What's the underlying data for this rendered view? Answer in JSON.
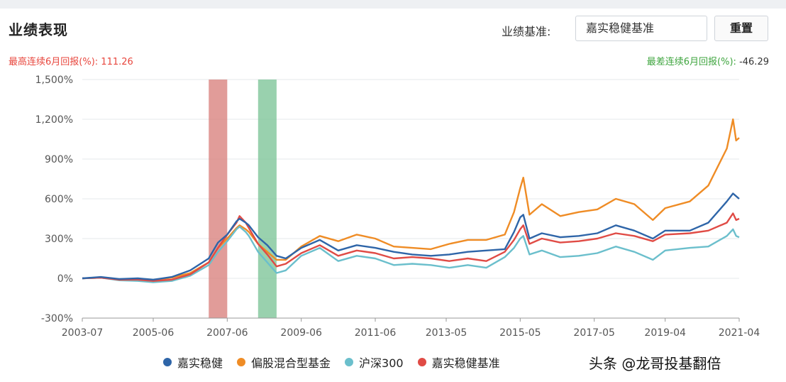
{
  "panel": {
    "title": "业绩表现",
    "benchmark_label": "业绩基准:",
    "benchmark_value": "嘉实稳健基准",
    "reset_label": "重置"
  },
  "stats": {
    "best_label": "最高连续6月回报(%):",
    "best_value": "111.26",
    "worst_label": "最差连续6月回报(%):",
    "worst_value": "-46.29"
  },
  "watermark": "头条 @龙哥投基翻倍",
  "colors": {
    "series1": "#2e65a8",
    "series2": "#ef8c25",
    "series3": "#6bbfcc",
    "series4": "#e04b45",
    "best_band": "#d9837f",
    "worst_band": "#7fc59a",
    "best_text": "#e8473e",
    "worst_text": "#3fa53f"
  },
  "chart_data": {
    "type": "line",
    "x_ticks": [
      "2003-07",
      "2005-06",
      "2007-06",
      "2009-06",
      "2011-06",
      "2013-05",
      "2015-05",
      "2017-05",
      "2019-04",
      "2021-04"
    ],
    "y_ticks": [
      "1,500%",
      "1,200%",
      "900%",
      "600%",
      "300%",
      "0%",
      "-300%"
    ],
    "ylim": [
      -300,
      1500
    ],
    "y_unit": "%",
    "x_range": [
      "2003-07",
      "2021-04"
    ],
    "grid": "horizontal",
    "legend_position": "bottom",
    "shaded_periods": [
      {
        "kind": "best_6m",
        "start": "2006-12",
        "end": "2007-06"
      },
      {
        "kind": "worst_6m",
        "start": "2008-04",
        "end": "2008-10"
      }
    ],
    "series": [
      {
        "name": "嘉实稳健",
        "key": "series1",
        "points": [
          [
            "2003-07",
            0
          ],
          [
            "2004-01",
            10
          ],
          [
            "2004-07",
            -5
          ],
          [
            "2005-01",
            0
          ],
          [
            "2005-06",
            -10
          ],
          [
            "2005-12",
            10
          ],
          [
            "2006-06",
            60
          ],
          [
            "2006-12",
            150
          ],
          [
            "2007-03",
            270
          ],
          [
            "2007-06",
            330
          ],
          [
            "2007-09",
            430
          ],
          [
            "2007-10",
            450
          ],
          [
            "2007-12",
            420
          ],
          [
            "2008-01",
            400
          ],
          [
            "2008-04",
            310
          ],
          [
            "2008-07",
            250
          ],
          [
            "2008-10",
            170
          ],
          [
            "2009-01",
            150
          ],
          [
            "2009-06",
            230
          ],
          [
            "2009-12",
            290
          ],
          [
            "2010-06",
            210
          ],
          [
            "2010-12",
            250
          ],
          [
            "2011-06",
            230
          ],
          [
            "2011-12",
            200
          ],
          [
            "2012-06",
            180
          ],
          [
            "2012-12",
            170
          ],
          [
            "2013-06",
            180
          ],
          [
            "2013-12",
            200
          ],
          [
            "2014-06",
            210
          ],
          [
            "2014-12",
            220
          ],
          [
            "2015-03",
            350
          ],
          [
            "2015-05",
            460
          ],
          [
            "2015-06",
            480
          ],
          [
            "2015-08",
            300
          ],
          [
            "2015-12",
            340
          ],
          [
            "2016-06",
            310
          ],
          [
            "2016-12",
            320
          ],
          [
            "2017-06",
            340
          ],
          [
            "2017-12",
            400
          ],
          [
            "2018-06",
            360
          ],
          [
            "2018-12",
            300
          ],
          [
            "2019-04",
            360
          ],
          [
            "2019-12",
            360
          ],
          [
            "2020-06",
            420
          ],
          [
            "2020-12",
            580
          ],
          [
            "2021-02",
            640
          ],
          [
            "2021-03",
            620
          ],
          [
            "2021-04",
            600
          ]
        ]
      },
      {
        "name": "偏股混合型基金",
        "key": "series2",
        "points": [
          [
            "2003-07",
            0
          ],
          [
            "2004-01",
            5
          ],
          [
            "2004-07",
            -10
          ],
          [
            "2005-01",
            -5
          ],
          [
            "2005-06",
            -15
          ],
          [
            "2005-12",
            5
          ],
          [
            "2006-06",
            40
          ],
          [
            "2006-12",
            120
          ],
          [
            "2007-03",
            230
          ],
          [
            "2007-06",
            300
          ],
          [
            "2007-09",
            380
          ],
          [
            "2007-10",
            400
          ],
          [
            "2007-12",
            370
          ],
          [
            "2008-01",
            350
          ],
          [
            "2008-04",
            260
          ],
          [
            "2008-07",
            200
          ],
          [
            "2008-10",
            140
          ],
          [
            "2009-01",
            140
          ],
          [
            "2009-06",
            240
          ],
          [
            "2009-12",
            320
          ],
          [
            "2010-06",
            280
          ],
          [
            "2010-12",
            330
          ],
          [
            "2011-06",
            300
          ],
          [
            "2011-12",
            240
          ],
          [
            "2012-06",
            230
          ],
          [
            "2012-12",
            220
          ],
          [
            "2013-06",
            260
          ],
          [
            "2013-12",
            290
          ],
          [
            "2014-06",
            290
          ],
          [
            "2014-12",
            330
          ],
          [
            "2015-03",
            500
          ],
          [
            "2015-05",
            680
          ],
          [
            "2015-06",
            760
          ],
          [
            "2015-08",
            480
          ],
          [
            "2015-12",
            560
          ],
          [
            "2016-06",
            470
          ],
          [
            "2016-12",
            500
          ],
          [
            "2017-06",
            520
          ],
          [
            "2017-12",
            600
          ],
          [
            "2018-06",
            560
          ],
          [
            "2018-12",
            440
          ],
          [
            "2019-04",
            530
          ],
          [
            "2019-12",
            580
          ],
          [
            "2020-06",
            700
          ],
          [
            "2020-12",
            980
          ],
          [
            "2021-02",
            1200
          ],
          [
            "2021-03",
            1040
          ],
          [
            "2021-04",
            1060
          ]
        ]
      },
      {
        "name": "沪深300",
        "key": "series3",
        "points": [
          [
            "2003-07",
            0
          ],
          [
            "2004-01",
            5
          ],
          [
            "2004-07",
            -15
          ],
          [
            "2005-01",
            -20
          ],
          [
            "2005-06",
            -30
          ],
          [
            "2005-12",
            -20
          ],
          [
            "2006-06",
            20
          ],
          [
            "2006-12",
            100
          ],
          [
            "2007-03",
            200
          ],
          [
            "2007-06",
            280
          ],
          [
            "2007-09",
            370
          ],
          [
            "2007-10",
            390
          ],
          [
            "2007-12",
            350
          ],
          [
            "2008-01",
            320
          ],
          [
            "2008-04",
            200
          ],
          [
            "2008-07",
            120
          ],
          [
            "2008-10",
            40
          ],
          [
            "2009-01",
            60
          ],
          [
            "2009-06",
            170
          ],
          [
            "2009-12",
            230
          ],
          [
            "2010-06",
            130
          ],
          [
            "2010-12",
            170
          ],
          [
            "2011-06",
            150
          ],
          [
            "2011-12",
            100
          ],
          [
            "2012-06",
            110
          ],
          [
            "2012-12",
            100
          ],
          [
            "2013-06",
            80
          ],
          [
            "2013-12",
            100
          ],
          [
            "2014-06",
            80
          ],
          [
            "2014-12",
            160
          ],
          [
            "2015-03",
            230
          ],
          [
            "2015-05",
            300
          ],
          [
            "2015-06",
            320
          ],
          [
            "2015-08",
            180
          ],
          [
            "2015-12",
            210
          ],
          [
            "2016-06",
            160
          ],
          [
            "2016-12",
            170
          ],
          [
            "2017-06",
            190
          ],
          [
            "2017-12",
            240
          ],
          [
            "2018-06",
            200
          ],
          [
            "2018-12",
            140
          ],
          [
            "2019-04",
            210
          ],
          [
            "2019-12",
            230
          ],
          [
            "2020-06",
            240
          ],
          [
            "2020-12",
            320
          ],
          [
            "2021-02",
            370
          ],
          [
            "2021-03",
            320
          ],
          [
            "2021-04",
            310
          ]
        ]
      },
      {
        "name": "嘉实稳健基准",
        "key": "series4",
        "points": [
          [
            "2003-07",
            0
          ],
          [
            "2004-01",
            5
          ],
          [
            "2004-07",
            -10
          ],
          [
            "2005-01",
            -10
          ],
          [
            "2005-06",
            -20
          ],
          [
            "2005-12",
            -10
          ],
          [
            "2006-06",
            30
          ],
          [
            "2006-12",
            120
          ],
          [
            "2007-03",
            230
          ],
          [
            "2007-06",
            330
          ],
          [
            "2007-09",
            420
          ],
          [
            "2007-10",
            470
          ],
          [
            "2007-12",
            420
          ],
          [
            "2008-01",
            380
          ],
          [
            "2008-04",
            260
          ],
          [
            "2008-07",
            180
          ],
          [
            "2008-10",
            90
          ],
          [
            "2009-01",
            110
          ],
          [
            "2009-06",
            190
          ],
          [
            "2009-12",
            250
          ],
          [
            "2010-06",
            170
          ],
          [
            "2010-12",
            210
          ],
          [
            "2011-06",
            190
          ],
          [
            "2011-12",
            150
          ],
          [
            "2012-06",
            160
          ],
          [
            "2012-12",
            150
          ],
          [
            "2013-06",
            130
          ],
          [
            "2013-12",
            150
          ],
          [
            "2014-06",
            130
          ],
          [
            "2014-12",
            200
          ],
          [
            "2015-03",
            290
          ],
          [
            "2015-05",
            370
          ],
          [
            "2015-06",
            400
          ],
          [
            "2015-08",
            260
          ],
          [
            "2015-12",
            300
          ],
          [
            "2016-06",
            270
          ],
          [
            "2016-12",
            280
          ],
          [
            "2017-06",
            300
          ],
          [
            "2017-12",
            340
          ],
          [
            "2018-06",
            320
          ],
          [
            "2018-12",
            280
          ],
          [
            "2019-04",
            330
          ],
          [
            "2019-12",
            340
          ],
          [
            "2020-06",
            360
          ],
          [
            "2020-12",
            420
          ],
          [
            "2021-02",
            490
          ],
          [
            "2021-03",
            440
          ],
          [
            "2021-04",
            450
          ]
        ]
      }
    ]
  }
}
